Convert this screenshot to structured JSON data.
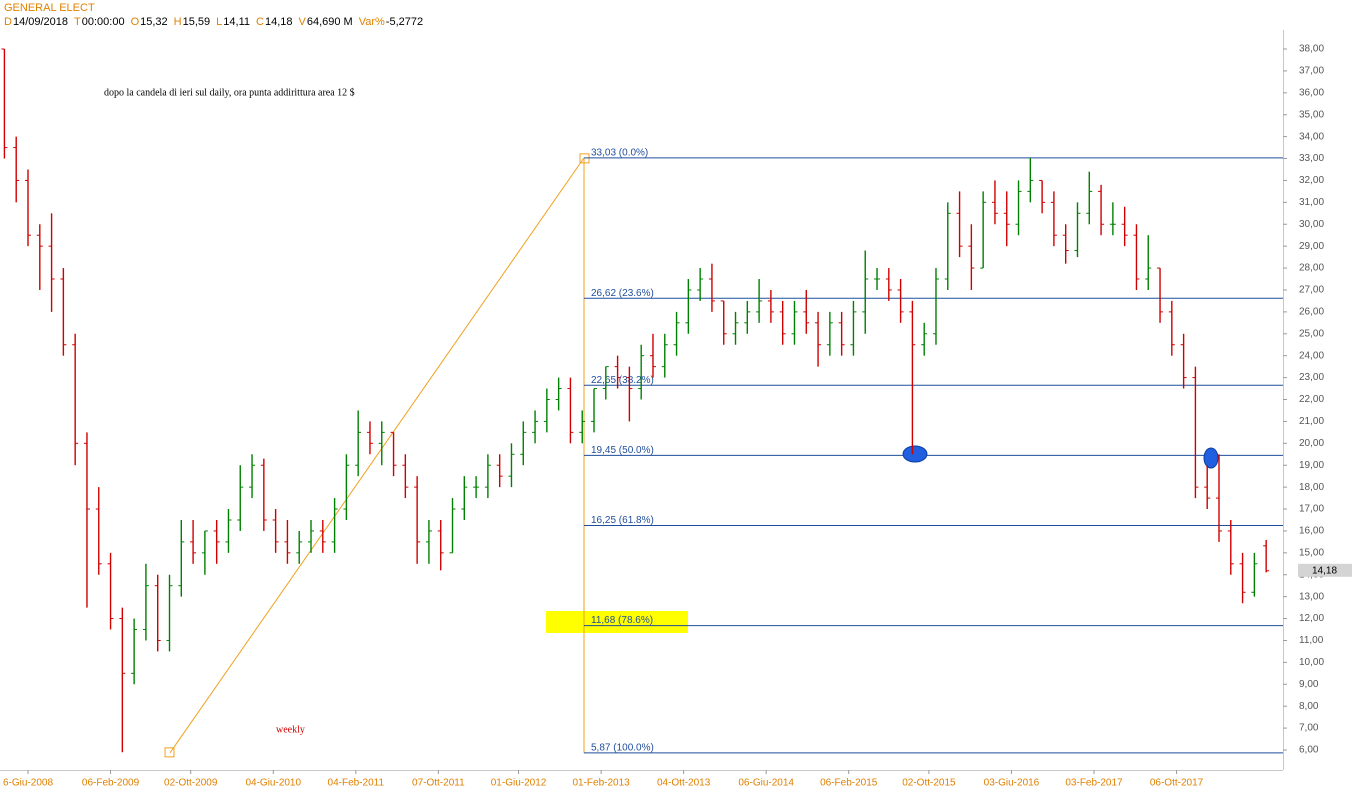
{
  "header": {
    "symbol": "GENERAL ELECT",
    "fields": [
      {
        "key": "D",
        "value": "14/09/2018"
      },
      {
        "key": "T",
        "value": "00:00:00"
      },
      {
        "key": "O",
        "value": "15,32"
      },
      {
        "key": "H",
        "value": "15,59"
      },
      {
        "key": "L",
        "value": "14,11"
      },
      {
        "key": "C",
        "value": "14,18"
      },
      {
        "key": "V",
        "value": "64,690 M"
      },
      {
        "key": "Var%",
        "value": "-5,2772"
      }
    ]
  },
  "chart_data": {
    "type": "ohlc",
    "annotations": [
      "dopo la candela di ieri sul daily, ora punta addirittura area 12 $",
      "weekly"
    ],
    "up_color": "#008000",
    "down_color": "#d00000",
    "x": [
      -10,
      -5,
      0,
      5,
      10,
      15,
      20,
      25,
      30,
      35,
      40,
      45,
      50,
      55,
      60,
      65,
      70,
      75,
      80,
      85,
      90,
      95,
      100,
      105,
      110,
      115,
      120,
      125,
      130,
      135,
      140,
      145,
      150,
      155,
      160,
      165,
      170,
      175,
      180,
      185,
      190,
      195,
      200,
      205,
      210,
      215,
      220,
      225,
      230,
      235,
      240,
      245,
      250,
      255,
      260,
      265,
      270,
      275,
      280,
      285,
      290,
      295,
      300,
      305,
      310,
      315,
      320,
      325,
      330,
      335,
      340,
      345,
      350,
      355,
      360,
      365,
      370,
      375,
      380,
      385,
      390,
      395,
      400,
      405,
      410,
      415,
      420,
      425,
      430,
      435,
      440,
      445,
      450,
      455,
      460,
      465,
      470,
      475,
      480,
      485,
      490,
      495,
      500,
      505,
      510,
      515,
      520,
      525
    ],
    "open": [
      38,
      33.5,
      32,
      29.5,
      29,
      27.5,
      24.5,
      20,
      17,
      14.5,
      12,
      9.5,
      11.5,
      13.5,
      11,
      13.5,
      15.5,
      15,
      16,
      15.5,
      16.5,
      18,
      19,
      16.5,
      15.5,
      15,
      15.5,
      16,
      15.5,
      17,
      19,
      20.5,
      20,
      20.5,
      19,
      18,
      15.5,
      16,
      15,
      17,
      18,
      18,
      19,
      18.5,
      19.5,
      20.5,
      21,
      22,
      22.5,
      20.5,
      21,
      22.5,
      23.5,
      23,
      22.5,
      24,
      23.5,
      24.5,
      25.5,
      27,
      27.5,
      26.5,
      25,
      25.5,
      26,
      26.5,
      26,
      25,
      26,
      25.5,
      24.5,
      25.5,
      24.5,
      26,
      27.5,
      27.5,
      27,
      26,
      24.5,
      25,
      27.5,
      30.5,
      29,
      28,
      31,
      30.5,
      30,
      31.5,
      32,
      31,
      29.5,
      28.8,
      30.5,
      31.5,
      30,
      30,
      29.5,
      27.5,
      28,
      26,
      24.5,
      23,
      18,
      17.5,
      16,
      14.5,
      13.2,
      15.32
    ],
    "high": [
      38,
      34,
      32.5,
      30,
      30.5,
      28,
      25,
      20.5,
      18,
      15,
      12.5,
      12,
      14.5,
      14,
      14,
      16.5,
      16.5,
      16,
      16.5,
      17,
      19,
      19.5,
      19.3,
      17,
      16.5,
      16,
      16.5,
      16.5,
      17.5,
      19.5,
      21.5,
      21,
      21,
      20.5,
      19.5,
      18.5,
      16.5,
      16.5,
      17.5,
      18.5,
      18.5,
      19.5,
      19.5,
      20,
      21,
      21.5,
      22.5,
      23,
      23,
      21.5,
      22.5,
      23.5,
      24,
      23.5,
      24.5,
      25,
      25,
      26,
      27.5,
      28,
      28.2,
      26.5,
      26,
      26.5,
      27.5,
      27,
      26.5,
      26.5,
      27,
      26,
      26,
      26,
      26.5,
      28.8,
      28,
      28,
      27.5,
      26.5,
      25.5,
      28,
      31,
      31.5,
      30,
      31.5,
      32,
      31.5,
      32,
      33.03,
      32,
      31.5,
      30,
      31,
      32.4,
      31.8,
      31,
      30.8,
      30,
      29.5,
      28,
      26.5,
      25,
      23.5,
      19,
      19.5,
      16.5,
      15,
      15,
      15.59
    ],
    "low": [
      33,
      31,
      29,
      27,
      26,
      24,
      19,
      12.5,
      14,
      11.5,
      5.9,
      9,
      11,
      10.5,
      10.5,
      13,
      14.5,
      14,
      14.5,
      15,
      16,
      17.5,
      16,
      15,
      14.5,
      14.5,
      15,
      15,
      15,
      16.5,
      18.5,
      19.5,
      19,
      18.5,
      17.5,
      14.5,
      14.5,
      14.2,
      15,
      16.5,
      17.5,
      17.5,
      18,
      18,
      19,
      20,
      20.5,
      21.5,
      20,
      20,
      20.5,
      22,
      22.5,
      21,
      22,
      23,
      23,
      24,
      25,
      26.5,
      26,
      24.5,
      24.5,
      25,
      25.5,
      25.5,
      24.5,
      24.5,
      25,
      23.5,
      24,
      24,
      24,
      25,
      27,
      26.5,
      25.5,
      19.5,
      24,
      24.5,
      27,
      28.5,
      27,
      28,
      30,
      29,
      29.5,
      31,
      30.5,
      29,
      28.2,
      28.5,
      30,
      29.5,
      29.5,
      29,
      27,
      27,
      25.5,
      24,
      22.5,
      17.5,
      17,
      15.5,
      14,
      12.7,
      13,
      14.11
    ],
    "close": [
      33.5,
      32,
      29.5,
      29,
      27.5,
      24.5,
      20,
      17,
      14.5,
      12,
      9.5,
      11.5,
      13.5,
      11,
      13.5,
      15.5,
      15,
      16,
      15.5,
      16.5,
      18,
      19,
      16.5,
      15.5,
      15,
      15.5,
      16,
      15.5,
      17,
      19,
      20.5,
      20,
      20.5,
      19,
      18,
      15.5,
      16,
      15,
      17,
      18,
      18,
      19,
      18.5,
      19.5,
      20.5,
      21,
      22,
      22.5,
      20.5,
      21,
      22.5,
      23.5,
      23,
      22.5,
      24,
      23.5,
      24.5,
      25.5,
      27,
      27.5,
      26.5,
      25,
      25.5,
      26,
      26.5,
      26,
      25,
      26,
      25.5,
      24.5,
      25.5,
      24.5,
      26,
      27.5,
      27.5,
      27,
      26,
      24.5,
      25,
      27.5,
      30.5,
      29,
      28,
      31,
      30.5,
      30,
      31.5,
      32,
      31,
      29.5,
      28.8,
      30.5,
      31.5,
      30,
      30,
      29.5,
      27.5,
      28,
      26,
      24.5,
      23,
      18,
      17.5,
      16,
      14.5,
      13.2,
      14.5,
      14.18
    ],
    "xlim": [
      -12,
      535
    ],
    "ylim": [
      5.2,
      39
    ],
    "xticks": [
      {
        "value": 0,
        "label": "6-Giu-2008"
      },
      {
        "value": 35,
        "label": "06-Feb-2009"
      },
      {
        "value": 69,
        "label": "02-Ott-2009"
      },
      {
        "value": 104,
        "label": "04-Giu-2010"
      },
      {
        "value": 139,
        "label": "04-Feb-2011"
      },
      {
        "value": 174,
        "label": "07-Ott-2011"
      },
      {
        "value": 208,
        "label": "01-Giu-2012"
      },
      {
        "value": 243,
        "label": "01-Feb-2013"
      },
      {
        "value": 278,
        "label": "04-Ott-2013"
      },
      {
        "value": 313,
        "label": "06-Giu-2014"
      },
      {
        "value": 348,
        "label": "06-Feb-2015"
      },
      {
        "value": 382,
        "label": "02-Ott-2015"
      },
      {
        "value": 417,
        "label": "03-Giu-2016"
      },
      {
        "value": 452,
        "label": "03-Feb-2017"
      },
      {
        "value": 487,
        "label": "06-Ott-2017"
      }
    ],
    "yticks": [
      {
        "value": 6,
        "label": "6,00"
      },
      {
        "value": 7,
        "label": "7,00"
      },
      {
        "value": 8,
        "label": "8,00"
      },
      {
        "value": 9,
        "label": "9,00"
      },
      {
        "value": 10,
        "label": "10,00"
      },
      {
        "value": 11,
        "label": "11,00"
      },
      {
        "value": 12,
        "label": "12,00"
      },
      {
        "value": 13,
        "label": "13,00"
      },
      {
        "value": 14,
        "label": "14,00"
      },
      {
        "value": 15,
        "label": "15,00"
      },
      {
        "value": 16,
        "label": "16,00"
      },
      {
        "value": 17,
        "label": "17,00"
      },
      {
        "value": 18,
        "label": "18,00"
      },
      {
        "value": 19,
        "label": "19,00"
      },
      {
        "value": 20,
        "label": "20,00"
      },
      {
        "value": 21,
        "label": "21,00"
      },
      {
        "value": 22,
        "label": "22,00"
      },
      {
        "value": 23,
        "label": "23,00"
      },
      {
        "value": 24,
        "label": "24,00"
      },
      {
        "value": 25,
        "label": "25,00"
      },
      {
        "value": 26,
        "label": "26,00"
      },
      {
        "value": 27,
        "label": "27,00"
      },
      {
        "value": 28,
        "label": "28,00"
      },
      {
        "value": 29,
        "label": "29,00"
      },
      {
        "value": 30,
        "label": "30,00"
      },
      {
        "value": 31,
        "label": "31,00"
      },
      {
        "value": 32,
        "label": "32,00"
      },
      {
        "value": 33,
        "label": "33,00"
      },
      {
        "value": 34,
        "label": "34,00"
      },
      {
        "value": 35,
        "label": "35,00"
      },
      {
        "value": 36,
        "label": "36,00"
      },
      {
        "value": 37,
        "label": "37,00"
      },
      {
        "value": 38,
        "label": "38,00"
      }
    ],
    "fib_levels": [
      {
        "value": 33.03,
        "label": "33,03 (0.0%)"
      },
      {
        "value": 26.62,
        "label": "26,62 (23.6%)"
      },
      {
        "value": 22.65,
        "label": "22,65 (38.2%)"
      },
      {
        "value": 19.45,
        "label": "19,45 (50.0%)"
      },
      {
        "value": 16.25,
        "label": "16,25 (61.8%)"
      },
      {
        "value": 11.68,
        "label": "11,68 (78.6%)"
      },
      {
        "value": 5.87,
        "label": "5,87 (100.0%)"
      }
    ],
    "fib_color": "#1f4e9c",
    "last_price": {
      "value": 14.18,
      "label": "14,18"
    }
  }
}
